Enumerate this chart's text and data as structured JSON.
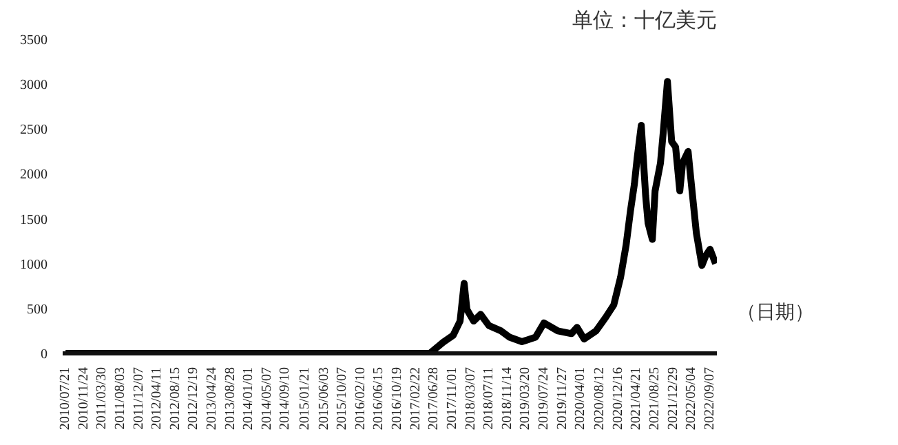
{
  "chart_data": {
    "type": "line",
    "annotations": [
      "单位：十亿美元"
    ],
    "xlabel": "（日期）",
    "xlim": [
      "2010-07-01",
      "2022-10-25"
    ],
    "xticks": [
      {
        "value": "2010-07-21",
        "label": "2010/07/21"
      },
      {
        "value": "2010-11-24",
        "label": "2010/11/24"
      },
      {
        "value": "2011-03-30",
        "label": "2011/03/30"
      },
      {
        "value": "2011-08-03",
        "label": "2011/08/03"
      },
      {
        "value": "2011-12-07",
        "label": "2011/12/07"
      },
      {
        "value": "2012-04-11",
        "label": "2012/04/11"
      },
      {
        "value": "2012-08-15",
        "label": "2012/08/15"
      },
      {
        "value": "2012-12-19",
        "label": "2012/12/19"
      },
      {
        "value": "2013-04-24",
        "label": "2013/04/24"
      },
      {
        "value": "2013-08-28",
        "label": "2013/08/28"
      },
      {
        "value": "2014-01-01",
        "label": "2014/01/01"
      },
      {
        "value": "2014-05-07",
        "label": "2014/05/07"
      },
      {
        "value": "2014-09-10",
        "label": "2014/09/10"
      },
      {
        "value": "2015-01-21",
        "label": "2015/01/21"
      },
      {
        "value": "2015-06-03",
        "label": "2015/06/03"
      },
      {
        "value": "2015-10-07",
        "label": "2015/10/07"
      },
      {
        "value": "2016-02-10",
        "label": "2016/02/10"
      },
      {
        "value": "2016-06-15",
        "label": "2016/06/15"
      },
      {
        "value": "2016-10-19",
        "label": "2016/10/19"
      },
      {
        "value": "2017-02-22",
        "label": "2017/02/22"
      },
      {
        "value": "2017-06-28",
        "label": "2017/06/28"
      },
      {
        "value": "2017-11-01",
        "label": "2017/11/01"
      },
      {
        "value": "2018-03-07",
        "label": "2018/03/07"
      },
      {
        "value": "2018-07-11",
        "label": "2018/07/11"
      },
      {
        "value": "2018-11-14",
        "label": "2018/11/14"
      },
      {
        "value": "2019-03-20",
        "label": "2019/03/20"
      },
      {
        "value": "2019-07-24",
        "label": "2019/07/24"
      },
      {
        "value": "2019-11-27",
        "label": "2019/11/27"
      },
      {
        "value": "2020-04-01",
        "label": "2020/04/01"
      },
      {
        "value": "2020-08-12",
        "label": "2020/08/12"
      },
      {
        "value": "2020-12-16",
        "label": "2020/12/16"
      },
      {
        "value": "2021-04-21",
        "label": "2021/04/21"
      },
      {
        "value": "2021-08-25",
        "label": "2021/08/25"
      },
      {
        "value": "2021-12-29",
        "label": "2021/12/29"
      },
      {
        "value": "2022-05-04",
        "label": "2022/05/04"
      },
      {
        "value": "2022-09-07",
        "label": "2022/09/07"
      }
    ],
    "ylim": [
      0,
      3500
    ],
    "yticks": [
      0,
      500,
      1000,
      1500,
      2000,
      2500,
      3000,
      3500
    ],
    "grid": false,
    "marker": "none",
    "line_style": "solid",
    "series": [
      {
        "color": "#000000",
        "x": [
          "2010-07-21",
          "2013-03-22",
          "2013-12-31",
          "2014-10-13",
          "2016-02-10",
          "2016-11-20",
          "2017-02-23",
          "2017-05-29",
          "2017-08-31",
          "2017-11-06",
          "2017-12-24",
          "2018-01-21",
          "2018-02-09",
          "2018-03-27",
          "2018-05-14",
          "2018-07-10",
          "2018-10-02",
          "2018-11-29",
          "2019-02-22",
          "2019-05-27",
          "2019-07-24",
          "2019-10-27",
          "2020-01-29",
          "2020-03-07",
          "2020-04-25",
          "2020-07-16",
          "2020-09-20",
          "2020-11-15",
          "2021-01-01",
          "2021-02-08",
          "2021-03-09",
          "2021-04-06",
          "2021-04-25",
          "2021-05-23",
          "2021-06-22",
          "2021-07-09",
          "2021-08-07",
          "2021-08-26",
          "2021-10-02",
          "2021-10-22",
          "2021-11-19",
          "2021-12-18",
          "2022-01-14",
          "2022-02-12",
          "2022-03-03",
          "2022-04-10",
          "2022-04-29",
          "2022-06-06",
          "2022-07-14",
          "2022-08-10",
          "2022-09-08",
          "2022-10-16"
        ],
        "values": [
          0,
          0,
          0,
          0,
          0,
          0,
          0,
          0,
          125,
          200,
          360,
          780,
          490,
          360,
          435,
          310,
          250,
          180,
          130,
          180,
          340,
          250,
          220,
          290,
          160,
          250,
          400,
          540,
          850,
          1210,
          1580,
          1890,
          2180,
          2540,
          1760,
          1450,
          1270,
          1810,
          2120,
          2480,
          3030,
          2360,
          2300,
          1810,
          2120,
          2250,
          1940,
          1340,
          980,
          1090,
          1160,
          1000
        ]
      }
    ]
  }
}
